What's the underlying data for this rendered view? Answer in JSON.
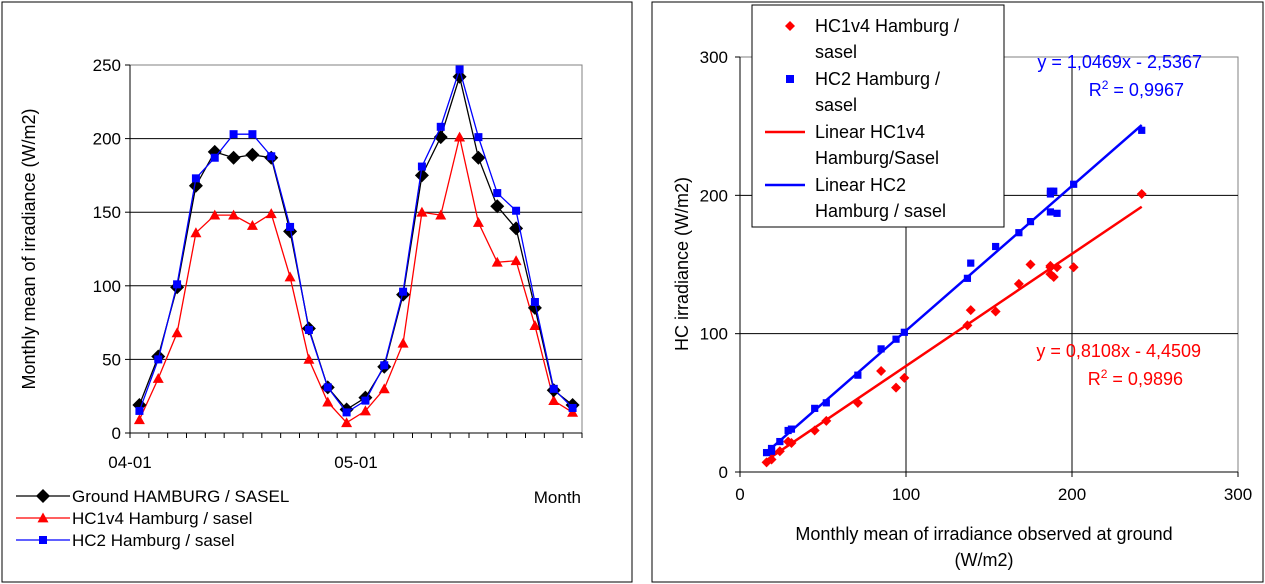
{
  "chart_data": [
    {
      "type": "line",
      "title": "",
      "xlabel": "Month",
      "ylabel": "Monthly mean of irradiance (W/m2)",
      "ylim": [
        0,
        250
      ],
      "yticks": [
        "0",
        "50",
        "100",
        "150",
        "200",
        "250"
      ],
      "xtick_labels": [
        {
          "index": 0,
          "label": "04-01"
        },
        {
          "index": 12,
          "label": "05-01"
        }
      ],
      "grid": "horizontal",
      "legend_position": "bottom-left",
      "series": [
        {
          "name": "Ground HAMBURG / SASEL",
          "color": "#000000",
          "marker": "diamond",
          "values": [
            19,
            52,
            99,
            168,
            191,
            187,
            189,
            187,
            137,
            71,
            31,
            16,
            24,
            45,
            94,
            175,
            201,
            242,
            187,
            154,
            139,
            85,
            29,
            19
          ]
        },
        {
          "name": "HC1v4 Hamburg / sasel",
          "color": "#ff0000",
          "marker": "triangle",
          "values": [
            9,
            37,
            68,
            136,
            148,
            148,
            141,
            149,
            106,
            50,
            21,
            7,
            15,
            30,
            61,
            150,
            148,
            201,
            143,
            116,
            117,
            73,
            22,
            14
          ]
        },
        {
          "name": "HC2 Hamburg / sasel",
          "color": "#0000ff",
          "marker": "square",
          "values": [
            15,
            50,
            101,
            173,
            187,
            203,
            203,
            188,
            140,
            70,
            31,
            14,
            22,
            46,
            96,
            181,
            208,
            247,
            201,
            163,
            151,
            89,
            30,
            17
          ]
        }
      ]
    },
    {
      "type": "scatter",
      "title": "",
      "xlabel": "Monthly mean of irradiance observed at ground (W/m2)",
      "ylabel": "HC irradiance (W/m2)",
      "xlim": [
        0,
        300
      ],
      "ylim": [
        0,
        300
      ],
      "xticks": [
        "0",
        "100",
        "200",
        "300"
      ],
      "yticks": [
        "0",
        "100",
        "200",
        "300"
      ],
      "grid": true,
      "legend_position": "top-left",
      "series": [
        {
          "name": "HC1v4 Hamburg / sasel",
          "color": "#ff0000",
          "marker": "diamond",
          "points": [
            [
              19,
              9
            ],
            [
              52,
              37
            ],
            [
              99,
              68
            ],
            [
              168,
              136
            ],
            [
              191,
              148
            ],
            [
              187,
              148
            ],
            [
              189,
              141
            ],
            [
              187,
              149
            ],
            [
              137,
              106
            ],
            [
              71,
              50
            ],
            [
              31,
              21
            ],
            [
              16,
              7
            ],
            [
              24,
              15
            ],
            [
              45,
              30
            ],
            [
              94,
              61
            ],
            [
              175,
              150
            ],
            [
              201,
              148
            ],
            [
              242,
              201
            ],
            [
              187,
              143
            ],
            [
              154,
              116
            ],
            [
              139,
              117
            ],
            [
              85,
              73
            ],
            [
              29,
              22
            ],
            [
              19,
              14
            ]
          ]
        },
        {
          "name": "HC2 Hamburg / sasel",
          "color": "#0000ff",
          "marker": "square",
          "points": [
            [
              19,
              15
            ],
            [
              52,
              50
            ],
            [
              99,
              101
            ],
            [
              168,
              173
            ],
            [
              191,
              187
            ],
            [
              187,
              203
            ],
            [
              189,
              203
            ],
            [
              187,
              188
            ],
            [
              137,
              140
            ],
            [
              71,
              70
            ],
            [
              31,
              31
            ],
            [
              16,
              14
            ],
            [
              24,
              22
            ],
            [
              45,
              46
            ],
            [
              94,
              96
            ],
            [
              175,
              181
            ],
            [
              201,
              208
            ],
            [
              242,
              247
            ],
            [
              187,
              201
            ],
            [
              154,
              163
            ],
            [
              139,
              151
            ],
            [
              85,
              89
            ],
            [
              29,
              30
            ],
            [
              19,
              17
            ]
          ]
        }
      ],
      "trendlines": [
        {
          "name": "Linear HC1v4 Hamburg/Sasel",
          "color": "#ff0000",
          "slope": 0.8108,
          "intercept": -4.4509,
          "x_range": [
            16,
            242
          ],
          "equation": "y = 0,8108x - 4,4509",
          "r2_label": "R",
          "r2_value": " = 0,9896"
        },
        {
          "name": "Linear HC2 Hamburg / sasel",
          "color": "#0000ff",
          "slope": 1.0469,
          "intercept": -2.5367,
          "x_range": [
            16,
            242
          ],
          "equation": "y = 1,0469x - 2,5367",
          "r2_label": "R",
          "r2_value": " = 0,9967"
        }
      ],
      "legend_entries": [
        {
          "lines": [
            "HC1v4 Hamburg /",
            "sasel"
          ],
          "color": "#ff0000",
          "marker": "diamond"
        },
        {
          "lines": [
            "HC2 Hamburg /",
            "sasel"
          ],
          "color": "#0000ff",
          "marker": "square"
        },
        {
          "lines": [
            "Linear HC1v4",
            "Hamburg/Sasel"
          ],
          "color": "#ff0000",
          "marker": "line"
        },
        {
          "lines": [
            "Linear HC2",
            "Hamburg / sasel"
          ],
          "color": "#0000ff",
          "marker": "line"
        }
      ]
    }
  ]
}
